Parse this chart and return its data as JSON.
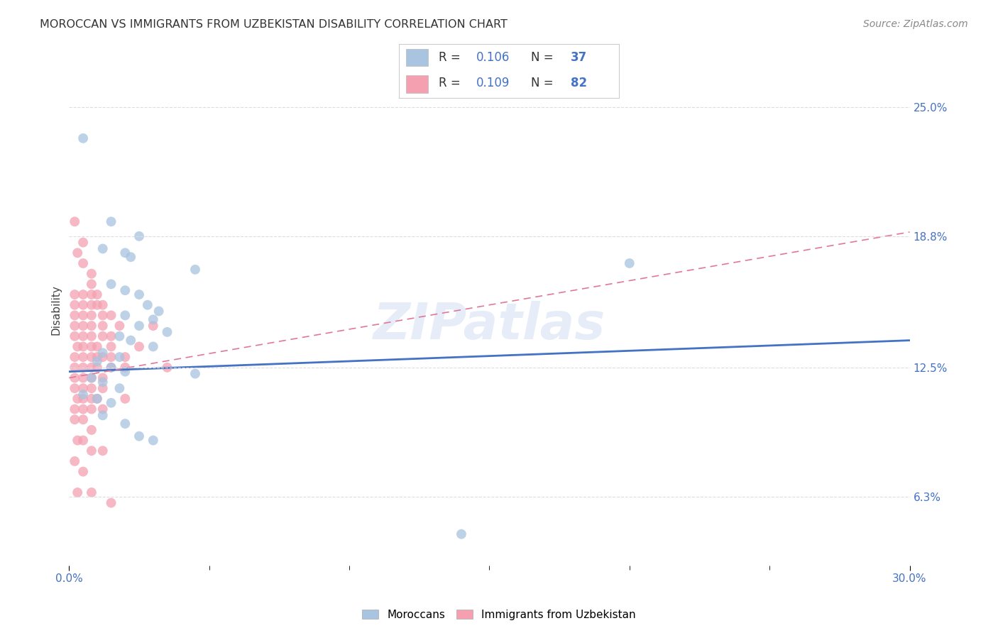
{
  "title": "MOROCCAN VS IMMIGRANTS FROM UZBEKISTAN DISABILITY CORRELATION CHART",
  "source": "Source: ZipAtlas.com",
  "ylabel": "Disability",
  "ylabel_vals": [
    6.3,
    12.5,
    18.8,
    25.0
  ],
  "xlim": [
    0.0,
    30.0
  ],
  "ylim": [
    3.0,
    27.5
  ],
  "moroccan_color": "#a8c4e0",
  "uzbek_color": "#f4a0b0",
  "moroccan_line_color": "#4472c4",
  "uzbek_line_color": "#e07898",
  "legend_blue_text": "#4472c4",
  "watermark": "ZIPatlas",
  "moroccan_scatter": [
    [
      0.5,
      23.5
    ],
    [
      1.5,
      19.5
    ],
    [
      2.5,
      18.8
    ],
    [
      1.2,
      18.2
    ],
    [
      2.0,
      18.0
    ],
    [
      2.2,
      17.8
    ],
    [
      4.5,
      17.2
    ],
    [
      1.5,
      16.5
    ],
    [
      2.0,
      16.2
    ],
    [
      2.5,
      16.0
    ],
    [
      2.8,
      15.5
    ],
    [
      3.2,
      15.2
    ],
    [
      2.0,
      15.0
    ],
    [
      3.0,
      14.8
    ],
    [
      2.5,
      14.5
    ],
    [
      3.5,
      14.2
    ],
    [
      1.8,
      14.0
    ],
    [
      2.2,
      13.8
    ],
    [
      3.0,
      13.5
    ],
    [
      1.2,
      13.2
    ],
    [
      1.8,
      13.0
    ],
    [
      1.0,
      12.8
    ],
    [
      1.5,
      12.5
    ],
    [
      2.0,
      12.3
    ],
    [
      0.8,
      12.0
    ],
    [
      1.2,
      11.8
    ],
    [
      1.8,
      11.5
    ],
    [
      0.5,
      11.2
    ],
    [
      1.0,
      11.0
    ],
    [
      1.5,
      10.8
    ],
    [
      1.2,
      10.2
    ],
    [
      2.0,
      9.8
    ],
    [
      2.5,
      9.2
    ],
    [
      3.0,
      9.0
    ],
    [
      4.5,
      12.2
    ],
    [
      14.0,
      4.5
    ],
    [
      20.0,
      17.5
    ]
  ],
  "uzbek_scatter": [
    [
      0.2,
      19.5
    ],
    [
      0.5,
      18.5
    ],
    [
      0.3,
      18.0
    ],
    [
      0.5,
      17.5
    ],
    [
      0.8,
      17.0
    ],
    [
      0.8,
      16.5
    ],
    [
      0.2,
      16.0
    ],
    [
      0.5,
      16.0
    ],
    [
      0.8,
      16.0
    ],
    [
      1.0,
      16.0
    ],
    [
      0.2,
      15.5
    ],
    [
      0.5,
      15.5
    ],
    [
      0.8,
      15.5
    ],
    [
      1.0,
      15.5
    ],
    [
      1.2,
      15.5
    ],
    [
      0.2,
      15.0
    ],
    [
      0.5,
      15.0
    ],
    [
      0.8,
      15.0
    ],
    [
      1.2,
      15.0
    ],
    [
      1.5,
      15.0
    ],
    [
      0.2,
      14.5
    ],
    [
      0.5,
      14.5
    ],
    [
      0.8,
      14.5
    ],
    [
      1.2,
      14.5
    ],
    [
      1.8,
      14.5
    ],
    [
      0.2,
      14.0
    ],
    [
      0.5,
      14.0
    ],
    [
      0.8,
      14.0
    ],
    [
      1.2,
      14.0
    ],
    [
      1.5,
      14.0
    ],
    [
      0.3,
      13.5
    ],
    [
      0.5,
      13.5
    ],
    [
      0.8,
      13.5
    ],
    [
      1.0,
      13.5
    ],
    [
      1.5,
      13.5
    ],
    [
      2.5,
      13.5
    ],
    [
      0.2,
      13.0
    ],
    [
      0.5,
      13.0
    ],
    [
      0.8,
      13.0
    ],
    [
      1.0,
      13.0
    ],
    [
      1.2,
      13.0
    ],
    [
      1.5,
      13.0
    ],
    [
      2.0,
      13.0
    ],
    [
      0.2,
      12.5
    ],
    [
      0.5,
      12.5
    ],
    [
      0.8,
      12.5
    ],
    [
      1.0,
      12.5
    ],
    [
      1.5,
      12.5
    ],
    [
      2.0,
      12.5
    ],
    [
      0.2,
      12.0
    ],
    [
      0.5,
      12.0
    ],
    [
      0.8,
      12.0
    ],
    [
      1.2,
      12.0
    ],
    [
      0.2,
      11.5
    ],
    [
      0.5,
      11.5
    ],
    [
      0.8,
      11.5
    ],
    [
      1.2,
      11.5
    ],
    [
      0.3,
      11.0
    ],
    [
      0.5,
      11.0
    ],
    [
      0.8,
      11.0
    ],
    [
      1.0,
      11.0
    ],
    [
      2.0,
      11.0
    ],
    [
      0.2,
      10.5
    ],
    [
      0.5,
      10.5
    ],
    [
      0.8,
      10.5
    ],
    [
      1.2,
      10.5
    ],
    [
      0.2,
      10.0
    ],
    [
      0.5,
      10.0
    ],
    [
      0.8,
      9.5
    ],
    [
      0.3,
      9.0
    ],
    [
      0.5,
      9.0
    ],
    [
      0.8,
      8.5
    ],
    [
      1.2,
      8.5
    ],
    [
      0.2,
      8.0
    ],
    [
      0.5,
      7.5
    ],
    [
      0.3,
      6.5
    ],
    [
      0.8,
      6.5
    ],
    [
      1.5,
      6.0
    ],
    [
      3.0,
      14.5
    ],
    [
      3.5,
      12.5
    ]
  ],
  "moroccan_line": [
    [
      0.0,
      12.3
    ],
    [
      30.0,
      13.8
    ]
  ],
  "uzbek_line": [
    [
      0.0,
      12.0
    ],
    [
      30.0,
      19.0
    ]
  ],
  "background_color": "#ffffff",
  "grid_color": "#dddddd",
  "tick_color": "#4472c4",
  "bottom_legend": [
    "Moroccans",
    "Immigrants from Uzbekistan"
  ]
}
